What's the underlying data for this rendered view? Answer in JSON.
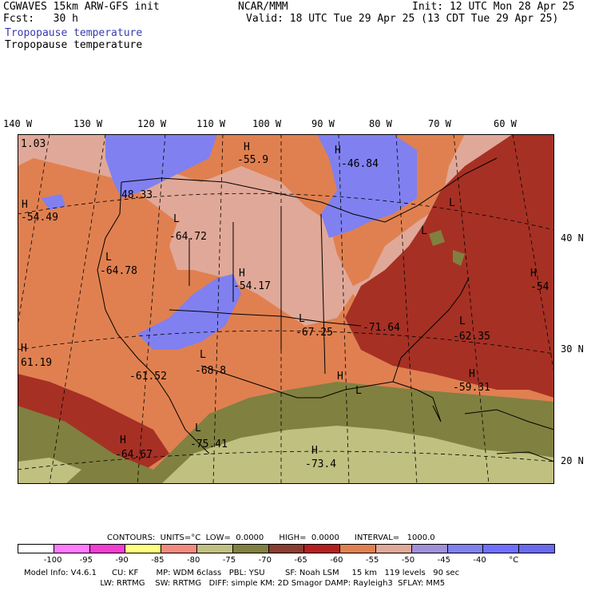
{
  "header": {
    "model": "CGWAVES 15km ARW-GFS init",
    "fcst": "Fcst:   30 h",
    "center": "NCAR/MMM",
    "init": "Init: 12 UTC Mon 28 Apr 25",
    "valid": "Valid: 18 UTC Tue 29 Apr 25 (13 CDT Tue 29 Apr 25)",
    "field_blue": "Tropopause temperature",
    "field_black": "Tropopause temperature"
  },
  "colors": {
    "field_blue": "#3a3ab0"
  },
  "longitudes": [
    "140 W",
    "130 W",
    "120 W",
    "110 W",
    "100 W",
    "90 W",
    "80 W",
    "70 W",
    "60 W"
  ],
  "latitudes": [
    "40 N",
    "30 N",
    "20 N"
  ],
  "map_labels": [
    {
      "text": "1.03"
    },
    {
      "text": "H"
    },
    {
      "text": "-55.9"
    },
    {
      "text": "H"
    },
    {
      "text": "-46.84"
    },
    {
      "text": "48.33"
    },
    {
      "text": "H"
    },
    {
      "text": "-54.49"
    },
    {
      "text": "L"
    },
    {
      "text": "-64.72"
    },
    {
      "text": "L"
    },
    {
      "text": "-64.78"
    },
    {
      "text": "H"
    },
    {
      "text": "-54.17"
    },
    {
      "text": "L"
    },
    {
      "text": "L"
    },
    {
      "text": "-67.25"
    },
    {
      "text": "-71.64"
    },
    {
      "text": "L"
    },
    {
      "text": "-62.35"
    },
    {
      "text": "H"
    },
    {
      "text": "-54"
    },
    {
      "text": "H"
    },
    {
      "text": "61.19"
    },
    {
      "text": "-61.52"
    },
    {
      "text": "L"
    },
    {
      "text": "-68.8"
    },
    {
      "text": "H"
    },
    {
      "text": "L"
    },
    {
      "text": "H"
    },
    {
      "text": "-59.31"
    },
    {
      "text": "H"
    },
    {
      "text": "-64.67"
    },
    {
      "text": "L"
    },
    {
      "text": "-75.41"
    },
    {
      "text": "H"
    },
    {
      "text": "-73.4"
    },
    {
      "text": "L"
    }
  ],
  "contours": {
    "line": "CONTOURS:  UNITS=°C  LOW=  0.0000      HIGH=  0.0000      INTERVAL=   1000.0"
  },
  "colorbar": {
    "colors": [
      "#ffffff",
      "#ff7cff",
      "#f23cd3",
      "#ffff80",
      "#f28a80",
      "#c0c080",
      "#808040",
      "#8a3c30",
      "#b42020",
      "#e08050",
      "#e0a898",
      "#a090d8",
      "#8080f0",
      "#7070ff",
      "#6a6af0"
    ],
    "labels": [
      "-100",
      "-95",
      "-90",
      "-85",
      "-80",
      "-75",
      "-70",
      "-65",
      "-60",
      "-55",
      "-50",
      "-45",
      "-40",
      "°C"
    ]
  },
  "footer": {
    "line1": "Model Info: V4.6.1      CU: KF       MP: WDM 6class   PBL: YSU        SF: Noah LSM     15 km   119 levels   90 sec",
    "line2": "                              LW: RRTMG    SW: RRTMG   DIFF: simple KM: 2D Smagor DAMP: Rayleigh3  SFLAY: MM5"
  }
}
